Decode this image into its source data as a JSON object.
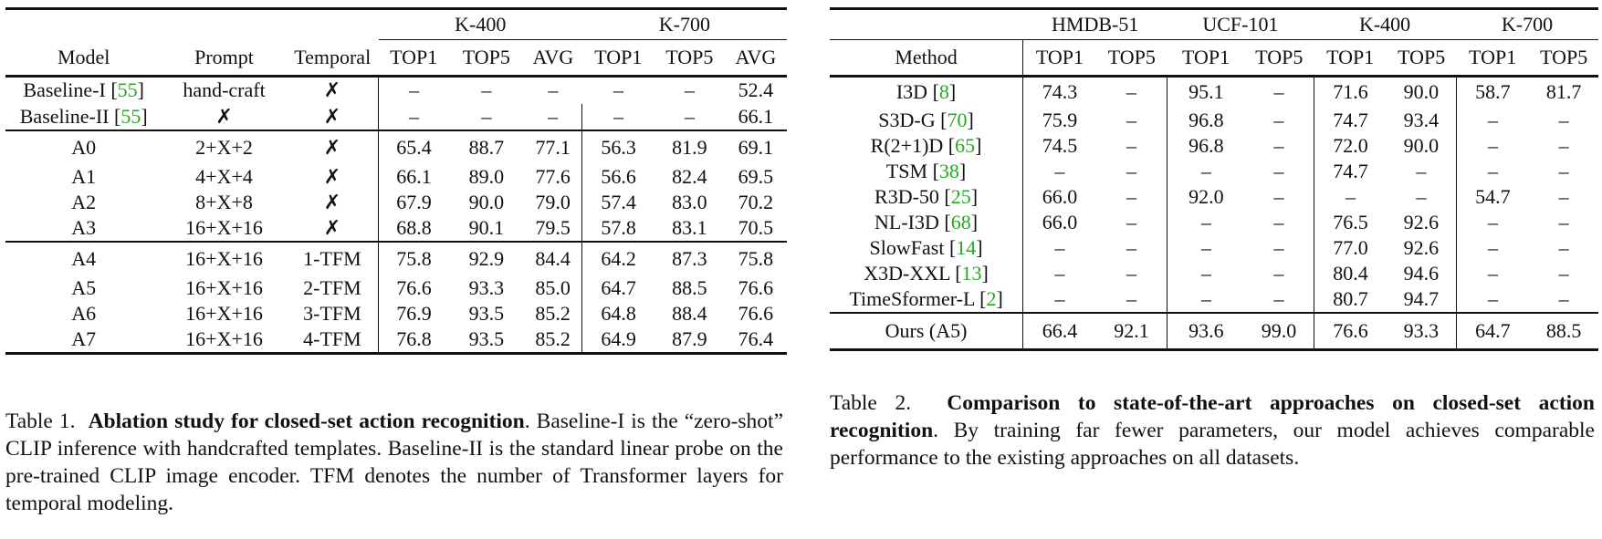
{
  "table1": {
    "group_headers": [
      "K-400",
      "K-700"
    ],
    "columns": [
      "Model",
      "Prompt",
      "Temporal",
      "TOP1",
      "TOP5",
      "AVG",
      "TOP1",
      "TOP5",
      "AVG"
    ],
    "baselines": [
      {
        "name": "Baseline-I",
        "cite": "55",
        "prompt": "hand-craft",
        "temporal": "✗",
        "vals": [
          "–",
          "–",
          "–",
          "–",
          "–",
          "52.4"
        ]
      },
      {
        "name": "Baseline-II",
        "cite": "55",
        "prompt": "✗",
        "temporal": "✗",
        "vals": [
          "–",
          "–",
          "–",
          "–",
          "–",
          "66.1"
        ]
      }
    ],
    "group_a": [
      {
        "name": "A0",
        "prompt": "2+X+2",
        "temporal": "✗",
        "vals": [
          "65.4",
          "88.7",
          "77.1",
          "56.3",
          "81.9",
          "69.1"
        ]
      },
      {
        "name": "A1",
        "prompt": "4+X+4",
        "temporal": "✗",
        "vals": [
          "66.1",
          "89.0",
          "77.6",
          "56.6",
          "82.4",
          "69.5"
        ]
      },
      {
        "name": "A2",
        "prompt": "8+X+8",
        "temporal": "✗",
        "vals": [
          "67.9",
          "90.0",
          "79.0",
          "57.4",
          "83.0",
          "70.2"
        ]
      },
      {
        "name": "A3",
        "prompt": "16+X+16",
        "temporal": "✗",
        "vals": [
          "68.8",
          "90.1",
          "79.5",
          "57.8",
          "83.1",
          "70.5"
        ]
      }
    ],
    "group_b": [
      {
        "name": "A4",
        "prompt": "16+X+16",
        "temporal": "1-TFM",
        "vals": [
          "75.8",
          "92.9",
          "84.4",
          "64.2",
          "87.3",
          "75.8"
        ]
      },
      {
        "name": "A5",
        "prompt": "16+X+16",
        "temporal": "2-TFM",
        "vals": [
          "76.6",
          "93.3",
          "85.0",
          "64.7",
          "88.5",
          "76.6"
        ]
      },
      {
        "name": "A6",
        "prompt": "16+X+16",
        "temporal": "3-TFM",
        "vals": [
          "76.9",
          "93.5",
          "85.2",
          "64.8",
          "88.4",
          "76.6"
        ]
      },
      {
        "name": "A7",
        "prompt": "16+X+16",
        "temporal": "4-TFM",
        "vals": [
          "76.8",
          "93.5",
          "85.2",
          "64.9",
          "87.9",
          "76.4"
        ]
      }
    ]
  },
  "caption1": {
    "label": "Table 1.",
    "bold": "Ablation study for closed-set action recognition",
    "rest": ". Baseline-I is the “zero-shot” CLIP inference with handcrafted templates. Baseline-II is the standard linear probe on the pre-trained CLIP image encoder. TFM denotes the number of Transformer layers for temporal modeling."
  },
  "table2": {
    "group_headers": [
      "HMDB-51",
      "UCF-101",
      "K-400",
      "K-700"
    ],
    "columns": [
      "Method",
      "TOP1",
      "TOP5",
      "TOP1",
      "TOP5",
      "TOP1",
      "TOP5",
      "TOP1",
      "TOP5"
    ],
    "rows": [
      {
        "name": "I3D",
        "cite": "8",
        "vals": [
          "74.3",
          "–",
          "95.1",
          "–",
          "71.6",
          "90.0",
          "58.7",
          "81.7"
        ]
      },
      {
        "name": "S3D-G",
        "cite": "70",
        "vals": [
          "75.9",
          "–",
          "96.8",
          "–",
          "74.7",
          "93.4",
          "–",
          "–"
        ]
      },
      {
        "name": "R(2+1)D",
        "cite": "65",
        "vals": [
          "74.5",
          "–",
          "96.8",
          "–",
          "72.0",
          "90.0",
          "–",
          "–"
        ]
      },
      {
        "name": "TSM",
        "cite": "38",
        "vals": [
          "–",
          "–",
          "–",
          "–",
          "74.7",
          "–",
          "–",
          "–"
        ]
      },
      {
        "name": "R3D-50",
        "cite": "25",
        "vals": [
          "66.0",
          "–",
          "92.0",
          "–",
          "–",
          "–",
          "54.7",
          "–"
        ]
      },
      {
        "name": "NL-I3D",
        "cite": "68",
        "vals": [
          "66.0",
          "–",
          "–",
          "–",
          "76.5",
          "92.6",
          "–",
          "–"
        ]
      },
      {
        "name": "SlowFast",
        "cite": "14",
        "vals": [
          "–",
          "–",
          "–",
          "–",
          "77.0",
          "92.6",
          "–",
          "–"
        ]
      },
      {
        "name": "X3D-XXL",
        "cite": "13",
        "vals": [
          "–",
          "–",
          "–",
          "–",
          "80.4",
          "94.6",
          "–",
          "–"
        ]
      },
      {
        "name": "TimeSformer-L",
        "cite": "2",
        "vals": [
          "–",
          "–",
          "–",
          "–",
          "80.7",
          "94.7",
          "–",
          "–"
        ]
      }
    ],
    "ours": {
      "name": "Ours (A5)",
      "vals": [
        "66.4",
        "92.1",
        "93.6",
        "99.0",
        "76.6",
        "93.3",
        "64.7",
        "88.5"
      ]
    }
  },
  "caption2": {
    "label": "Table 2.",
    "bold": "Comparison to state-of-the-art approaches on closed-set action recognition",
    "rest": ". By training far fewer parameters, our model achieves comparable performance to the existing approaches on all datasets."
  }
}
